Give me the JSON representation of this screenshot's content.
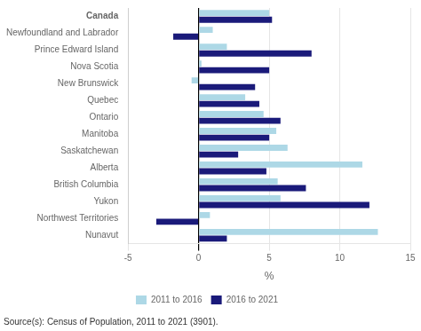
{
  "chart_data": {
    "type": "bar",
    "orientation": "horizontal",
    "categories": [
      "Canada",
      "Newfoundland and Labrador",
      "Prince Edward Island",
      "Nova Scotia",
      "New Brunswick",
      "Quebec",
      "Ontario",
      "Manitoba",
      "Saskatchewan",
      "Alberta",
      "British Columbia",
      "Yukon",
      "Northwest Territories",
      "Nunavut"
    ],
    "series": [
      {
        "name": "2011 to 2016",
        "color": "#add8e6",
        "values": [
          5.0,
          1.0,
          2.0,
          0.2,
          -0.5,
          3.3,
          4.6,
          5.5,
          6.3,
          11.6,
          5.6,
          5.8,
          0.8,
          12.7
        ]
      },
      {
        "name": "2016 to 2021",
        "color": "#1a1a7a",
        "values": [
          5.2,
          -1.8,
          8.0,
          5.0,
          4.0,
          4.3,
          5.8,
          5.0,
          2.8,
          4.8,
          7.6,
          12.1,
          -3.0,
          2.0
        ]
      }
    ],
    "xlabel": "%",
    "xlim": [
      -5,
      15
    ],
    "xticks": [
      -5,
      0,
      5,
      10,
      15
    ],
    "grid": true,
    "legend": "bottom",
    "annotations": [
      "Source(s): Census of Population, 2011 to 2021 (3901)."
    ]
  }
}
